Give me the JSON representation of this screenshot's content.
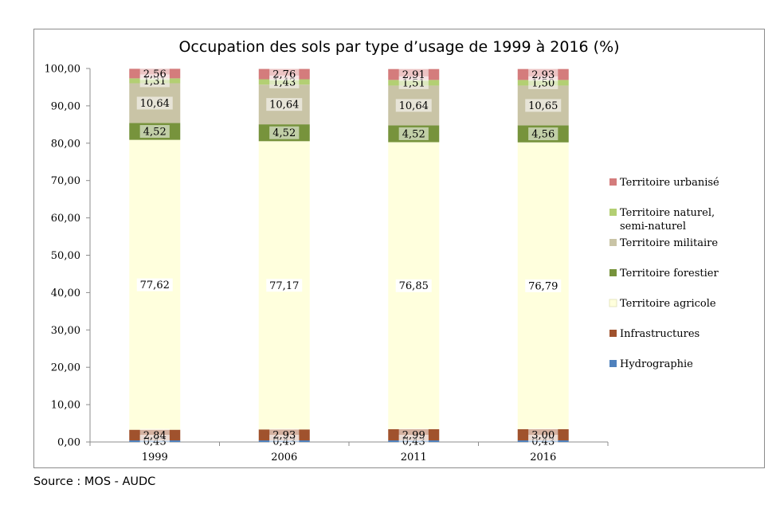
{
  "chart_data": {
    "type": "bar",
    "stacked": true,
    "title_bold": "Occupation des sols par type d’usage",
    "title_rest": " de 1999 à 2016 (%)",
    "xlabel": "",
    "ylabel": "",
    "ylim": [
      0,
      100
    ],
    "ytick_step": 10,
    "ytick_labels": [
      "0,00",
      "10,00",
      "20,00",
      "30,00",
      "40,00",
      "50,00",
      "60,00",
      "70,00",
      "80,00",
      "90,00",
      "100,00"
    ],
    "categories": [
      "1999",
      "2006",
      "2011",
      "2016"
    ],
    "legend_position": "right",
    "series": [
      {
        "name": "Hydrographie",
        "color": "#4f81bd",
        "values": [
          0.43,
          0.43,
          0.43,
          0.43
        ],
        "labels": [
          "0,43",
          "0,43",
          "0,43",
          "0,43"
        ]
      },
      {
        "name": "Infrastructures",
        "color": "#a0522d",
        "values": [
          2.84,
          2.93,
          2.99,
          3.0
        ],
        "labels": [
          "2,84",
          "2,93",
          "2,99",
          "3,00"
        ]
      },
      {
        "name": "Territoire agricole",
        "color": "#ffffdd",
        "values": [
          77.62,
          77.17,
          76.85,
          76.79
        ],
        "labels": [
          "77,62",
          "77,17",
          "76,85",
          "76,79"
        ]
      },
      {
        "name": "Territoire forestier",
        "color": "#77933c",
        "values": [
          4.52,
          4.52,
          4.52,
          4.56
        ],
        "labels": [
          "4,52",
          "4,52",
          "4,52",
          "4,56"
        ]
      },
      {
        "name": "Territoire militaire",
        "color": "#c9c4a6",
        "values": [
          10.64,
          10.64,
          10.64,
          10.65
        ],
        "labels": [
          "10,64",
          "10,64",
          "10,64",
          "10,65"
        ]
      },
      {
        "name": "Territoire naturel, semi-naturel",
        "legend_lines": [
          "Territoire naturel,",
          "semi-naturel"
        ],
        "color": "#b3cf73",
        "values": [
          1.31,
          1.43,
          1.51,
          1.5
        ],
        "labels": [
          "1,31",
          "1,43",
          "1,51",
          "1,50"
        ]
      },
      {
        "name": "Territoire urbanisé",
        "color": "#d47c7c",
        "values": [
          2.56,
          2.76,
          2.91,
          2.93
        ],
        "labels": [
          "2,56",
          "2,76",
          "2,91",
          "2,93"
        ]
      }
    ],
    "legend_order": [
      6,
      5,
      4,
      3,
      2,
      1,
      0
    ]
  },
  "source": "Source : MOS - AUDC"
}
